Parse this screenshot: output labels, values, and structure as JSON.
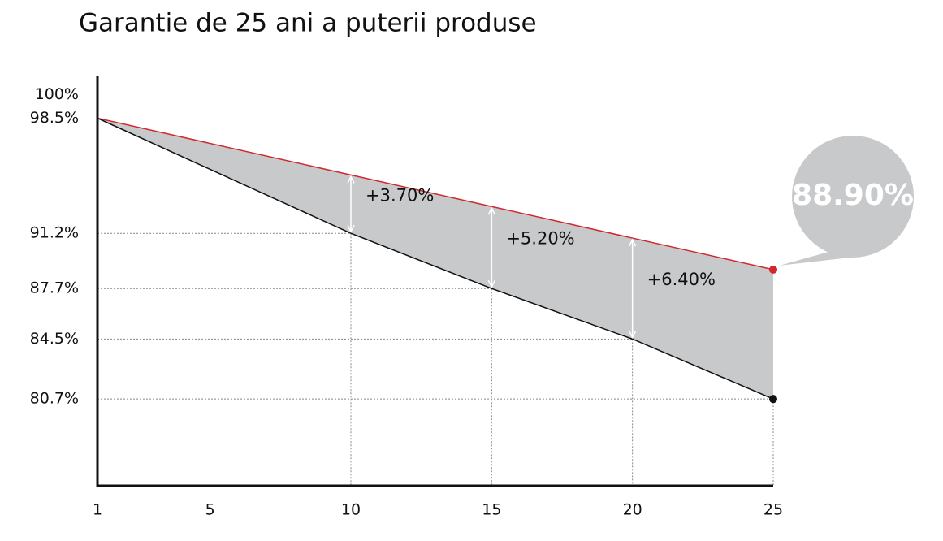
{
  "chart_data": {
    "type": "line",
    "title": "Garantie de 25 ani a puterii produse",
    "x": [
      1,
      10,
      15,
      20,
      25
    ],
    "series": [
      {
        "color": "#d0282e",
        "values": [
          98.5,
          94.9,
          92.9,
          90.9,
          88.9
        ]
      },
      {
        "color": "#111111",
        "values": [
          98.5,
          91.2,
          87.7,
          84.5,
          80.7
        ]
      }
    ],
    "fill_color": "#c8c9cb",
    "xlim": [
      1,
      25
    ],
    "xticks": [
      1,
      5,
      10,
      15,
      20,
      25
    ],
    "ylim": [
      75.2,
      101.2
    ],
    "yticks": [
      {
        "value": 100,
        "label": "100%"
      },
      {
        "value": 98.5,
        "label": "98.5%"
      },
      {
        "value": 91.2,
        "label": "91.2%"
      },
      {
        "value": 87.7,
        "label": "87.7%"
      },
      {
        "value": 84.5,
        "label": "84.5%"
      },
      {
        "value": 80.7,
        "label": "80.7%"
      }
    ],
    "grid": false,
    "annotations": [
      {
        "x": 10,
        "label": "+3.70%"
      },
      {
        "x": 15,
        "label": "+5.20%"
      },
      {
        "x": 20,
        "label": "+6.40%"
      }
    ],
    "callout": {
      "x": 25,
      "label": "88.90%"
    }
  }
}
